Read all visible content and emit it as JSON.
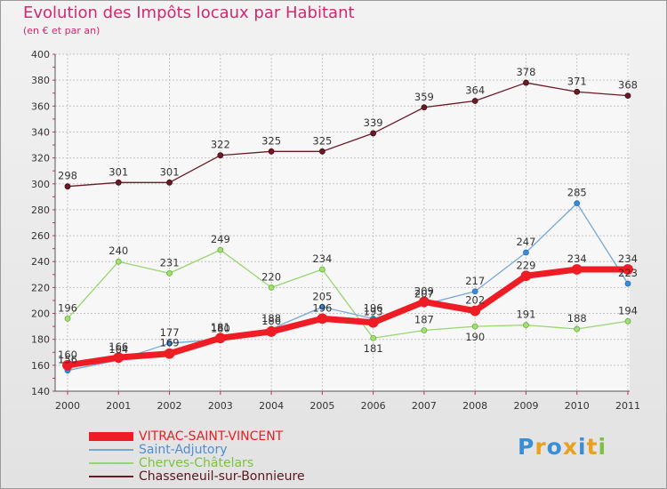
{
  "header": {
    "title": "Evolution des Impôts locaux par Habitant",
    "subtitle": "(en € et par an)"
  },
  "logo": {
    "text": "Proxiti",
    "letter_colors": [
      "#3a8fd4",
      "#e8a020",
      "#3a8fd4",
      "#e8a020",
      "#3a8fd4",
      "#e8a020",
      "#7cc242"
    ]
  },
  "chart_data": {
    "type": "line",
    "title": "Evolution des Impôts locaux par Habitant",
    "subtitle": "(en € et par an)",
    "xlabel": "",
    "ylabel": "",
    "x": [
      "2000",
      "2001",
      "2002",
      "2003",
      "2004",
      "2005",
      "2006",
      "2007",
      "2008",
      "2009",
      "2010",
      "2011"
    ],
    "ylim": [
      140,
      400
    ],
    "yticks": [
      140,
      160,
      180,
      200,
      220,
      240,
      260,
      280,
      300,
      320,
      340,
      360,
      380,
      400
    ],
    "grid": true,
    "legend_position": "bottom-left",
    "series": [
      {
        "name": "Chasseneuil-sur-Bonnieure",
        "color": "#6b1a26",
        "values": [
          298,
          301,
          301,
          322,
          325,
          325,
          339,
          359,
          364,
          378,
          371,
          368
        ]
      },
      {
        "name": "Cherves-Châtelars",
        "color": "#99d570",
        "values": [
          196,
          240,
          231,
          249,
          220,
          234,
          181,
          187,
          190,
          191,
          188,
          194
        ]
      },
      {
        "name": "Saint-Adjutory",
        "color": "#75a9d6",
        "values": [
          156,
          164,
          177,
          180,
          188,
          205,
          196,
          207,
          217,
          247,
          285,
          223
        ]
      },
      {
        "name": "VITRAC-SAINT-VINCENT",
        "color": "#ee1c24",
        "values": [
          160,
          166,
          169,
          181,
          186,
          196,
          193,
          209,
          202,
          229,
          234,
          234
        ]
      }
    ],
    "label_texts": {
      "VITRAC-SAINT-VINCENT": [
        "160",
        "166",
        "169",
        "181",
        "186",
        "196",
        "193",
        "209",
        "202",
        "229",
        "234",
        "234"
      ],
      "Saint-Adjutory": [
        "156",
        "164",
        "177",
        "180",
        "188",
        "205",
        "196",
        "207",
        "217",
        "247",
        "285",
        "223"
      ],
      "Cherves-Châtelars": [
        "196",
        "240",
        "231",
        "249",
        "220",
        "234",
        "181",
        "187",
        "190",
        "191",
        "188",
        "194"
      ],
      "Chasseneuil-sur-Bonnieure": [
        "298",
        "301",
        "301",
        "322",
        "325",
        "325",
        "339",
        "359",
        "364",
        "378",
        "371",
        "368"
      ]
    }
  },
  "legend": {
    "items": [
      {
        "label": "VITRAC-SAINT-VINCENT",
        "color": "#ee1c24"
      },
      {
        "label": "Saint-Adjutory",
        "color": "#75a9d6"
      },
      {
        "label": "Cherves-Châtelars",
        "color": "#99d570"
      },
      {
        "label": "Chasseneuil-sur-Bonnieure",
        "color": "#6b1a26"
      }
    ]
  }
}
